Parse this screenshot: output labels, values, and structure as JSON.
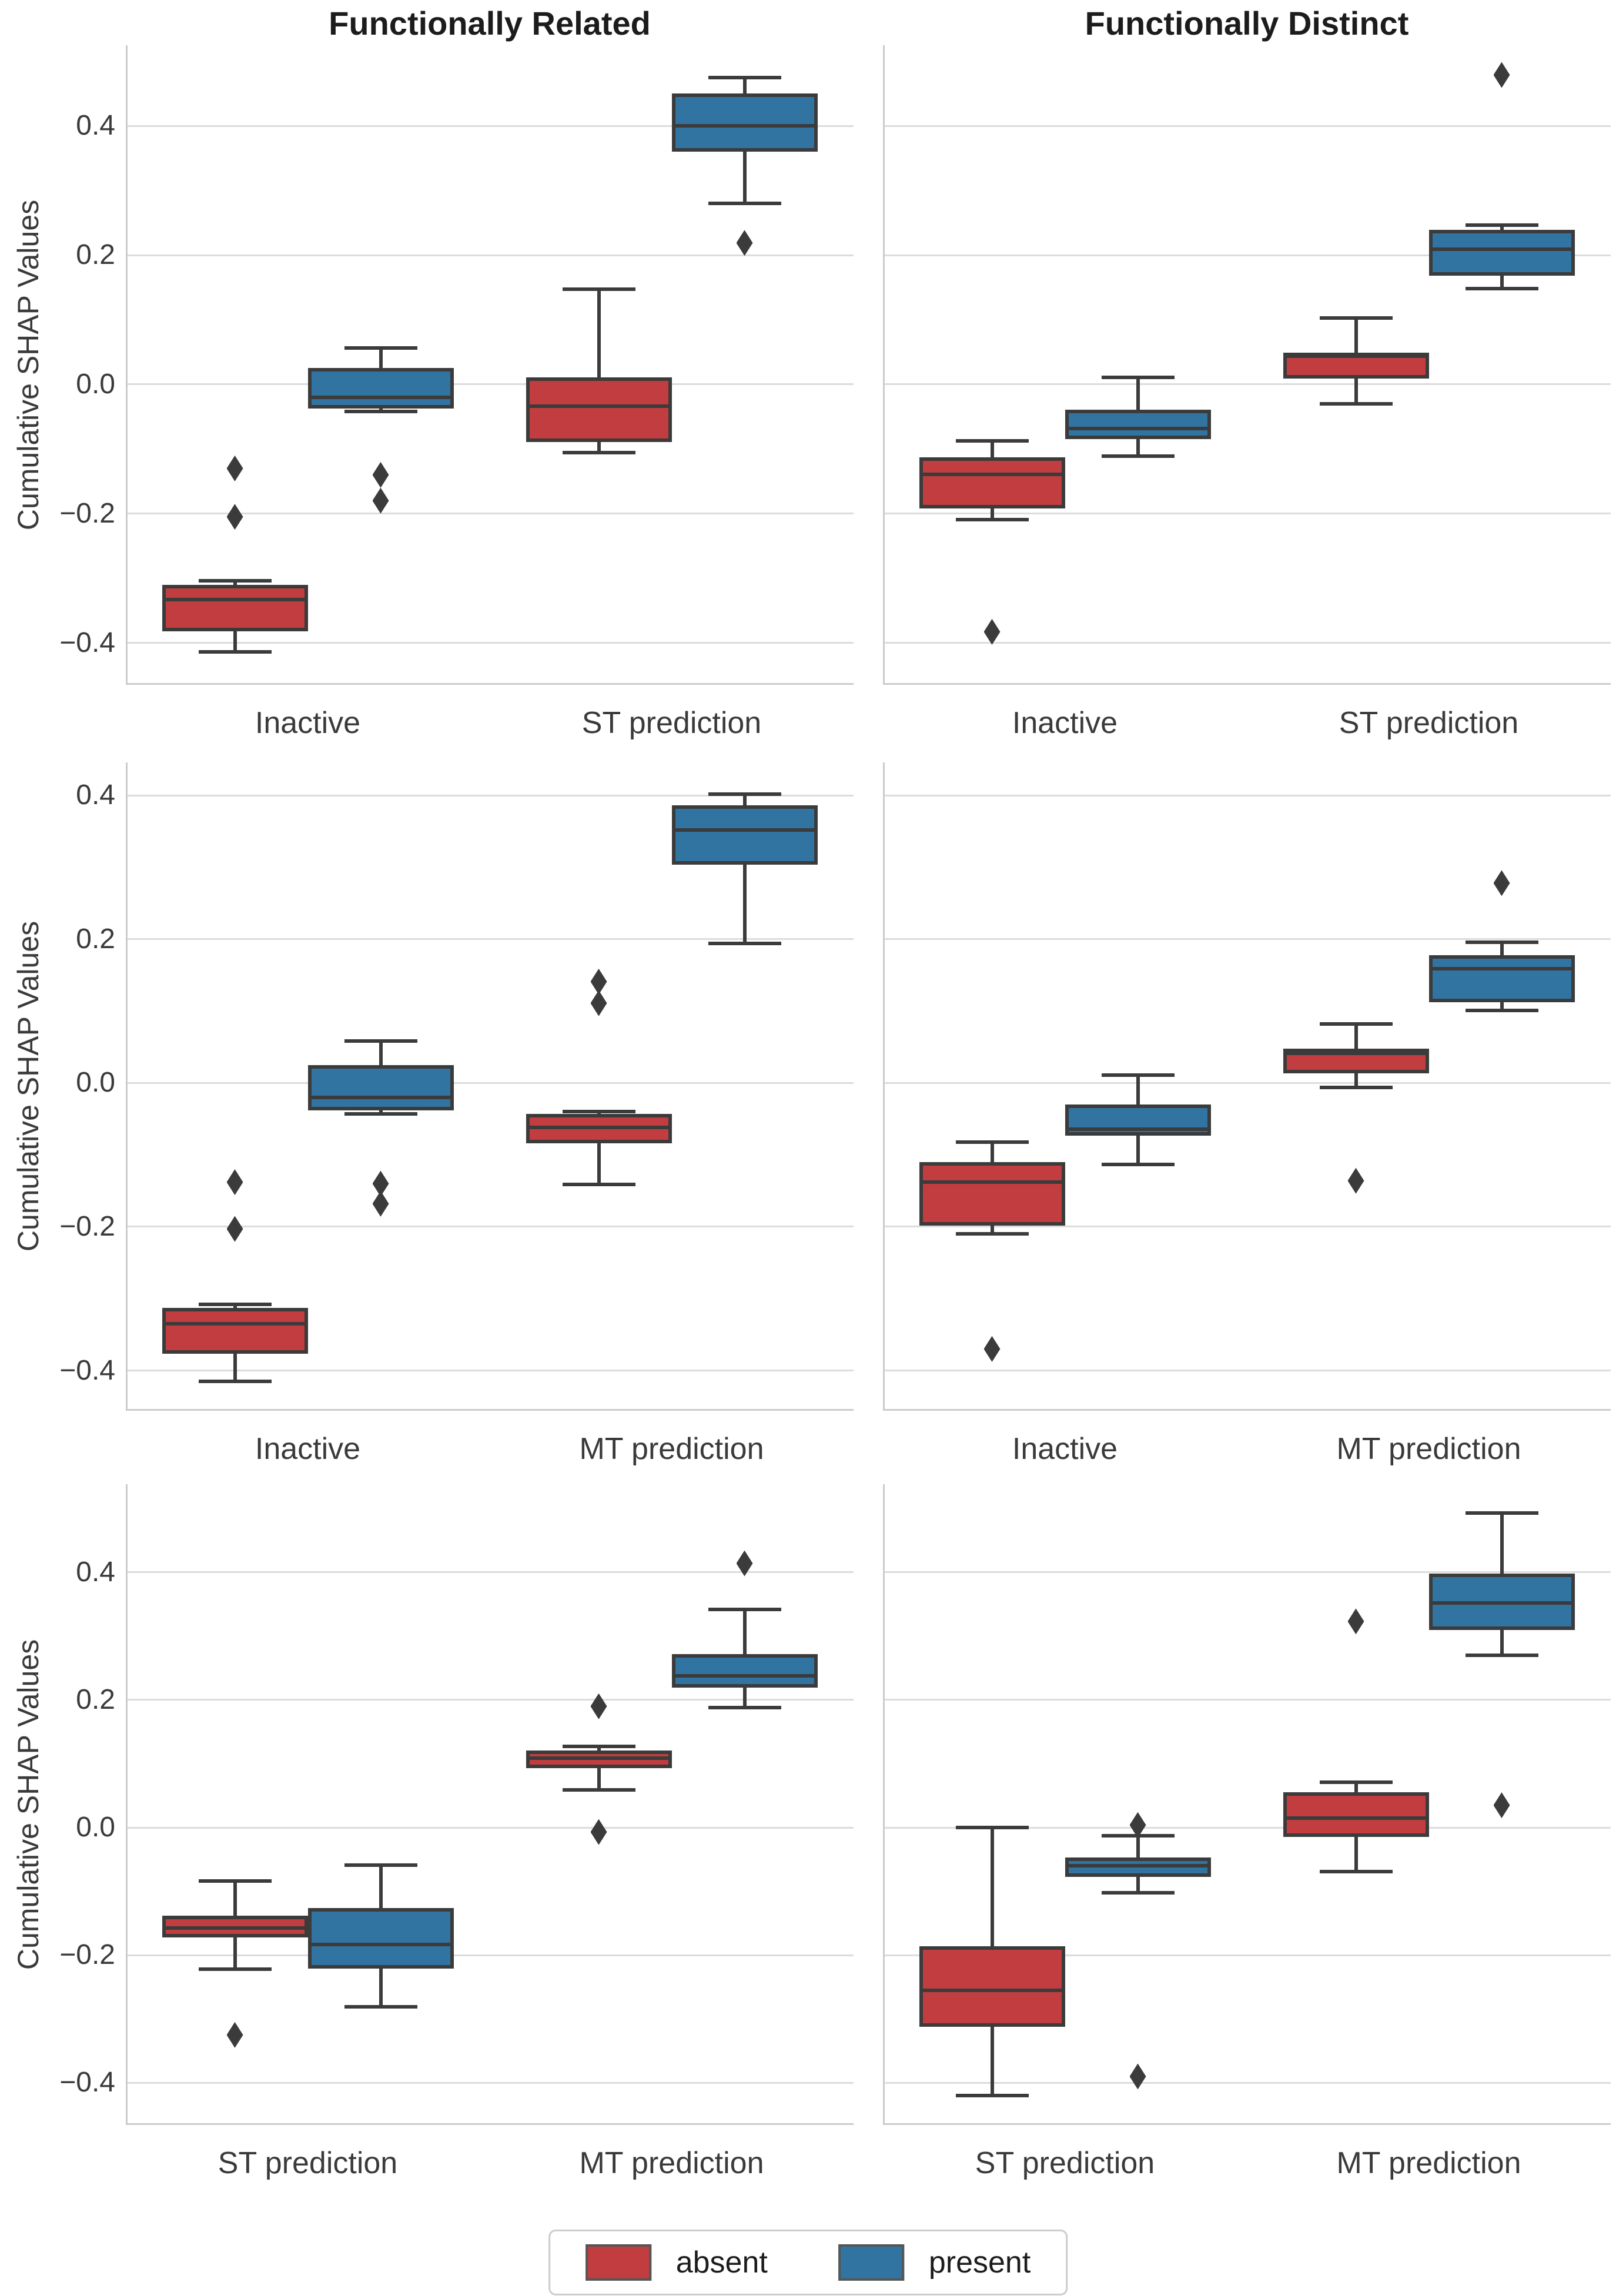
{
  "chart_data": {
    "type": "boxplot-grid",
    "grid": {
      "rows": 3,
      "cols": 2
    },
    "col_titles": [
      "Functionally Related",
      "Functionally Distinct"
    ],
    "ylabel": "Cumulative SHAP Values",
    "yticks": {
      "values": [
        0.4,
        0.2,
        0.0,
        -0.2,
        -0.4
      ],
      "labels": [
        "0.4",
        "0.2",
        "0.0",
        "−0.2",
        "−0.4"
      ]
    },
    "legend": [
      "absent",
      "present"
    ],
    "hue_colors": {
      "absent": "#c23d3f",
      "present": "#3174a1"
    },
    "edge_color": "#3b3b3b",
    "grid_color": "#dcdcdc",
    "spine_color": "#cccccc",
    "rows": [
      {
        "ylim": [
          -0.465,
          0.525
        ],
        "plots": [
          {
            "column_title": "Functionally Related",
            "categories": [
              "Inactive",
              "ST prediction"
            ],
            "boxes": [
              {
                "cat": 0,
                "hue": "absent",
                "whislo": -0.414,
                "q1": -0.382,
                "med": -0.333,
                "q3": -0.31,
                "whishi": -0.304,
                "outliers": [
                  -0.13,
                  -0.205
                ]
              },
              {
                "cat": 0,
                "hue": "present",
                "whislo": -0.042,
                "q1": -0.037,
                "med": -0.02,
                "q3": 0.025,
                "whishi": 0.056,
                "outliers": [
                  -0.14,
                  -0.18
                ]
              },
              {
                "cat": 1,
                "hue": "absent",
                "whislo": -0.106,
                "q1": -0.089,
                "med": -0.034,
                "q3": 0.011,
                "whishi": 0.147,
                "outliers": []
              },
              {
                "cat": 1,
                "hue": "present",
                "whislo": 0.28,
                "q1": 0.36,
                "med": 0.4,
                "q3": 0.45,
                "whishi": 0.475,
                "outliers": [
                  0.219
                ]
              }
            ]
          },
          {
            "column_title": "Functionally Distinct",
            "categories": [
              "Inactive",
              "ST prediction"
            ],
            "boxes": [
              {
                "cat": 0,
                "hue": "absent",
                "whislo": -0.209,
                "q1": -0.192,
                "med": -0.139,
                "q3": -0.113,
                "whishi": -0.087,
                "outliers": [
                  -0.383
                ]
              },
              {
                "cat": 0,
                "hue": "present",
                "whislo": -0.111,
                "q1": -0.085,
                "med": -0.068,
                "q3": -0.039,
                "whishi": 0.011,
                "outliers": []
              },
              {
                "cat": 1,
                "hue": "absent",
                "whislo": -0.03,
                "q1": 0.009,
                "med": 0.044,
                "q3": 0.049,
                "whishi": 0.103,
                "outliers": []
              },
              {
                "cat": 1,
                "hue": "present",
                "whislo": 0.148,
                "q1": 0.168,
                "med": 0.209,
                "q3": 0.239,
                "whishi": 0.247,
                "outliers": [
                  0.479
                ]
              }
            ]
          }
        ]
      },
      {
        "ylim": [
          -0.456,
          0.446
        ],
        "plots": [
          {
            "column_title": "Functionally Related",
            "categories": [
              "Inactive",
              "MT prediction"
            ],
            "boxes": [
              {
                "cat": 0,
                "hue": "absent",
                "whislo": -0.415,
                "q1": -0.377,
                "med": -0.335,
                "q3": -0.313,
                "whishi": -0.308,
                "outliers": [
                  -0.138,
                  -0.203
                ]
              },
              {
                "cat": 0,
                "hue": "present",
                "whislo": -0.043,
                "q1": -0.038,
                "med": -0.02,
                "q3": 0.025,
                "whishi": 0.058,
                "outliers": [
                  -0.14,
                  -0.168
                ]
              },
              {
                "cat": 1,
                "hue": "absent",
                "whislo": -0.141,
                "q1": -0.084,
                "med": -0.062,
                "q3": -0.043,
                "whishi": -0.04,
                "outliers": [
                  0.141,
                  0.111
                ]
              },
              {
                "cat": 1,
                "hue": "present",
                "whislo": 0.194,
                "q1": 0.304,
                "med": 0.352,
                "q3": 0.386,
                "whishi": 0.402,
                "outliers": []
              }
            ]
          },
          {
            "column_title": "Functionally Distinct",
            "categories": [
              "Inactive",
              "MT prediction"
            ],
            "boxes": [
              {
                "cat": 0,
                "hue": "absent",
                "whislo": -0.21,
                "q1": -0.198,
                "med": -0.138,
                "q3": -0.11,
                "whishi": -0.082,
                "outliers": [
                  -0.37
                ]
              },
              {
                "cat": 0,
                "hue": "present",
                "whislo": -0.113,
                "q1": -0.073,
                "med": -0.064,
                "q3": -0.03,
                "whishi": 0.011,
                "outliers": []
              },
              {
                "cat": 1,
                "hue": "absent",
                "whislo": -0.006,
                "q1": 0.013,
                "med": 0.041,
                "q3": 0.048,
                "whishi": 0.082,
                "outliers": [
                  -0.136
                ]
              },
              {
                "cat": 1,
                "hue": "present",
                "whislo": 0.101,
                "q1": 0.112,
                "med": 0.159,
                "q3": 0.178,
                "whishi": 0.196,
                "outliers": [
                  0.278
                ]
              }
            ]
          }
        ]
      },
      {
        "ylim": [
          -0.466,
          0.538
        ],
        "plots": [
          {
            "column_title": "Functionally Related",
            "categories": [
              "ST prediction",
              "MT prediction"
            ],
            "boxes": [
              {
                "cat": 0,
                "hue": "absent",
                "whislo": -0.222,
                "q1": -0.172,
                "med": -0.157,
                "q3": -0.138,
                "whishi": -0.084,
                "outliers": [
                  -0.325
                ]
              },
              {
                "cat": 0,
                "hue": "present",
                "whislo": -0.281,
                "q1": -0.221,
                "med": -0.183,
                "q3": -0.126,
                "whishi": -0.059,
                "outliers": []
              },
              {
                "cat": 1,
                "hue": "absent",
                "whislo": 0.059,
                "q1": 0.093,
                "med": 0.109,
                "q3": 0.121,
                "whishi": 0.127,
                "outliers": [
                  0.19,
                  -0.007
                ]
              },
              {
                "cat": 1,
                "hue": "present",
                "whislo": 0.188,
                "q1": 0.219,
                "med": 0.238,
                "q3": 0.272,
                "whishi": 0.342,
                "outliers": [
                  0.414
                ]
              }
            ]
          },
          {
            "column_title": "Functionally Distinct",
            "categories": [
              "ST prediction",
              "MT prediction"
            ],
            "boxes": [
              {
                "cat": 0,
                "hue": "absent",
                "whislo": -0.42,
                "q1": -0.312,
                "med": -0.255,
                "q3": -0.186,
                "whishi": 0.0,
                "outliers": []
              },
              {
                "cat": 0,
                "hue": "present",
                "whislo": -0.102,
                "q1": -0.077,
                "med": -0.06,
                "q3": -0.047,
                "whishi": -0.013,
                "outliers": [
                  0.004,
                  -0.39
                ]
              },
              {
                "cat": 1,
                "hue": "absent",
                "whislo": -0.069,
                "q1": -0.015,
                "med": 0.015,
                "q3": 0.055,
                "whishi": 0.071,
                "outliers": [
                  0.323
                ]
              },
              {
                "cat": 1,
                "hue": "present",
                "whislo": 0.27,
                "q1": 0.31,
                "med": 0.352,
                "q3": 0.398,
                "whishi": 0.493,
                "outliers": [
                  0.035
                ]
              }
            ]
          }
        ]
      }
    ]
  }
}
